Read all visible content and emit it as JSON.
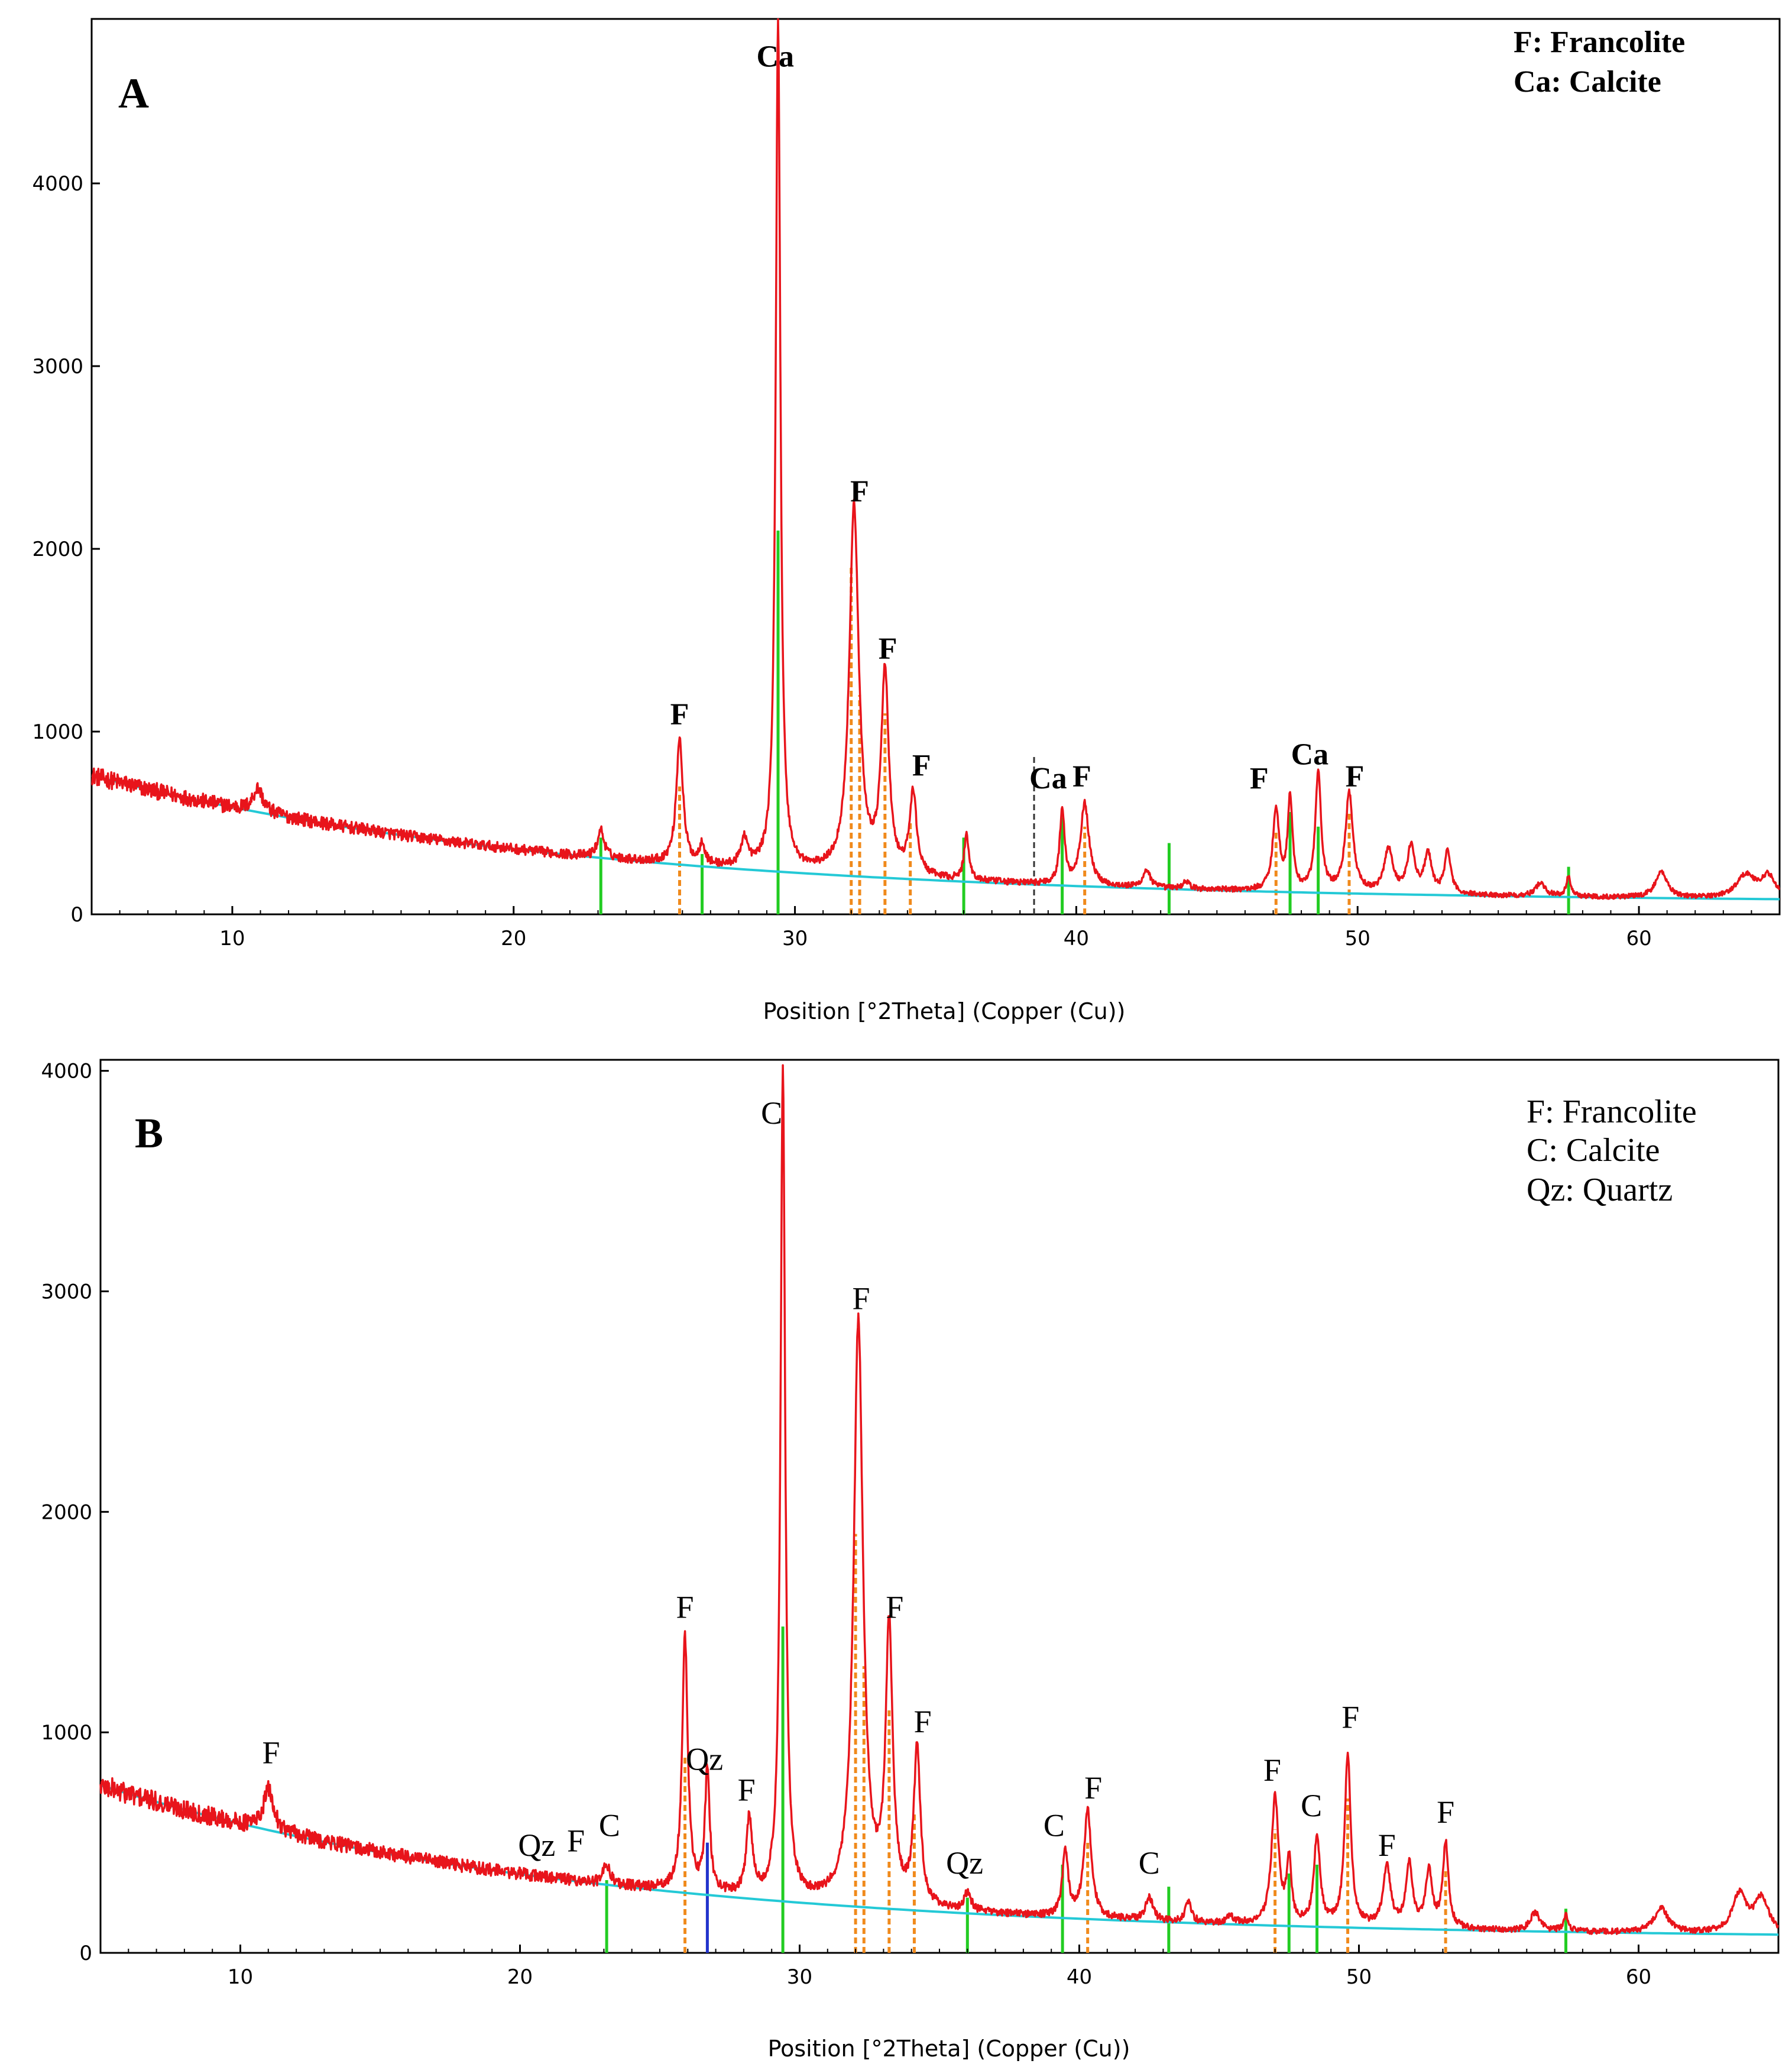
{
  "chart_data": [
    {
      "type": "line",
      "panel_label": "A",
      "xlabel": "Position [°2Theta] (Copper (Cu))",
      "ylabel": "",
      "xlim": [
        5,
        65
      ],
      "ylim": [
        0,
        4900
      ],
      "xticks": [
        10,
        20,
        30,
        40,
        50,
        60
      ],
      "yticks": [
        0,
        1000,
        2000,
        3000,
        4000
      ],
      "legend": [
        "F:  Francolite",
        "Ca: Calcite"
      ],
      "legend_position": "top-right",
      "colors": {
        "pattern": "#e8141b",
        "background": "#24c9d6",
        "reference_orange": "#f08a1c",
        "reference_green": "#22cc22"
      },
      "background_model": {
        "start": 760,
        "end": 60
      },
      "peaks": [
        {
          "x": 10.9,
          "y": 690,
          "w": 0.22
        },
        {
          "x": 22.0,
          "y": 310,
          "w": 0.18
        },
        {
          "x": 23.1,
          "y": 460,
          "w": 0.14
        },
        {
          "x": 25.9,
          "y": 960,
          "w": 0.14
        },
        {
          "x": 26.7,
          "y": 380,
          "w": 0.1
        },
        {
          "x": 28.2,
          "y": 400,
          "w": 0.14
        },
        {
          "x": 29.4,
          "y": 4880,
          "w": 0.1
        },
        {
          "x": 32.1,
          "y": 2220,
          "w": 0.2
        },
        {
          "x": 33.2,
          "y": 1290,
          "w": 0.16
        },
        {
          "x": 34.2,
          "y": 640,
          "w": 0.15
        },
        {
          "x": 36.1,
          "y": 430,
          "w": 0.1
        },
        {
          "x": 39.5,
          "y": 570,
          "w": 0.1
        },
        {
          "x": 40.3,
          "y": 600,
          "w": 0.18
        },
        {
          "x": 42.5,
          "y": 240,
          "w": 0.15
        },
        {
          "x": 43.9,
          "y": 180,
          "w": 0.12
        },
        {
          "x": 47.1,
          "y": 560,
          "w": 0.14
        },
        {
          "x": 47.6,
          "y": 630,
          "w": 0.1
        },
        {
          "x": 48.6,
          "y": 770,
          "w": 0.12
        },
        {
          "x": 49.7,
          "y": 660,
          "w": 0.16
        },
        {
          "x": 51.1,
          "y": 350,
          "w": 0.18
        },
        {
          "x": 51.9,
          "y": 360,
          "w": 0.16
        },
        {
          "x": 52.5,
          "y": 320,
          "w": 0.15
        },
        {
          "x": 53.2,
          "y": 340,
          "w": 0.13
        },
        {
          "x": 56.5,
          "y": 170,
          "w": 0.2
        },
        {
          "x": 57.5,
          "y": 200,
          "w": 0.1
        },
        {
          "x": 60.8,
          "y": 230,
          "w": 0.25
        },
        {
          "x": 63.8,
          "y": 210,
          "w": 0.4
        },
        {
          "x": 64.6,
          "y": 200,
          "w": 0.3
        }
      ],
      "reference_lines": [
        {
          "x": 23.1,
          "y": 420,
          "color": "green"
        },
        {
          "x": 26.7,
          "y": 330,
          "color": "green"
        },
        {
          "x": 29.4,
          "y": 2100,
          "color": "green"
        },
        {
          "x": 25.9,
          "y": 700,
          "color": "orange"
        },
        {
          "x": 32.0,
          "y": 1900,
          "color": "orange"
        },
        {
          "x": 32.3,
          "y": 1200,
          "color": "orange"
        },
        {
          "x": 33.2,
          "y": 1100,
          "color": "orange"
        },
        {
          "x": 34.1,
          "y": 500,
          "color": "orange"
        },
        {
          "x": 36.0,
          "y": 420,
          "color": "green"
        },
        {
          "x": 38.5,
          "y": 870,
          "color": "black"
        },
        {
          "x": 39.5,
          "y": 530,
          "color": "green"
        },
        {
          "x": 40.3,
          "y": 480,
          "color": "orange"
        },
        {
          "x": 43.3,
          "y": 390,
          "color": "green"
        },
        {
          "x": 47.1,
          "y": 450,
          "color": "orange"
        },
        {
          "x": 47.6,
          "y": 560,
          "color": "green"
        },
        {
          "x": 48.6,
          "y": 480,
          "color": "green"
        },
        {
          "x": 49.7,
          "y": 560,
          "color": "orange"
        },
        {
          "x": 57.5,
          "y": 260,
          "color": "green"
        }
      ],
      "annotations": [
        {
          "text": "Ca",
          "x": 29.3,
          "y": 4640
        },
        {
          "text": "F",
          "x": 32.3,
          "y": 2260
        },
        {
          "text": "F",
          "x": 33.3,
          "y": 1400
        },
        {
          "text": "F",
          "x": 25.9,
          "y": 1040
        },
        {
          "text": "F",
          "x": 34.5,
          "y": 760
        },
        {
          "text": "Ca",
          "x": 39.0,
          "y": 690
        },
        {
          "text": "F",
          "x": 40.2,
          "y": 700
        },
        {
          "text": "F",
          "x": 46.5,
          "y": 690
        },
        {
          "text": "Ca",
          "x": 48.3,
          "y": 820
        },
        {
          "text": "F",
          "x": 49.9,
          "y": 700
        }
      ]
    },
    {
      "type": "line",
      "panel_label": "B",
      "xlabel": "Position [°2Theta] (Copper (Cu))",
      "ylabel": "",
      "xlim": [
        5,
        65
      ],
      "ylim": [
        0,
        4050
      ],
      "xticks": [
        10,
        20,
        30,
        40,
        50,
        60
      ],
      "yticks": [
        0,
        1000,
        2000,
        3000,
        4000
      ],
      "legend": [
        "F:  Francolite",
        "C: Calcite",
        "Qz: Quartz"
      ],
      "legend_position": "top-right",
      "colors": {
        "pattern": "#e8141b",
        "background": "#24c9d6",
        "reference_orange": "#f08a1c",
        "reference_green": "#22cc22"
      },
      "background_model": {
        "start": 760,
        "end": 60
      },
      "peaks": [
        {
          "x": 11.0,
          "y": 740,
          "w": 0.22
        },
        {
          "x": 16.9,
          "y": 370,
          "w": 0.2
        },
        {
          "x": 20.9,
          "y": 290,
          "w": 0.12
        },
        {
          "x": 22.0,
          "y": 320,
          "w": 0.15
        },
        {
          "x": 23.1,
          "y": 400,
          "w": 0.14
        },
        {
          "x": 25.9,
          "y": 1420,
          "w": 0.12
        },
        {
          "x": 26.7,
          "y": 820,
          "w": 0.1
        },
        {
          "x": 28.2,
          "y": 590,
          "w": 0.13
        },
        {
          "x": 29.4,
          "y": 4000,
          "w": 0.1
        },
        {
          "x": 32.1,
          "y": 2850,
          "w": 0.2
        },
        {
          "x": 33.2,
          "y": 1440,
          "w": 0.15
        },
        {
          "x": 34.2,
          "y": 900,
          "w": 0.14
        },
        {
          "x": 36.0,
          "y": 260,
          "w": 0.15
        },
        {
          "x": 39.5,
          "y": 460,
          "w": 0.12
        },
        {
          "x": 40.3,
          "y": 640,
          "w": 0.16
        },
        {
          "x": 42.5,
          "y": 250,
          "w": 0.15
        },
        {
          "x": 43.9,
          "y": 230,
          "w": 0.12
        },
        {
          "x": 45.4,
          "y": 160,
          "w": 0.15
        },
        {
          "x": 47.0,
          "y": 700,
          "w": 0.15
        },
        {
          "x": 47.5,
          "y": 400,
          "w": 0.1
        },
        {
          "x": 48.5,
          "y": 520,
          "w": 0.13
        },
        {
          "x": 49.6,
          "y": 890,
          "w": 0.13
        },
        {
          "x": 51.0,
          "y": 380,
          "w": 0.16
        },
        {
          "x": 51.8,
          "y": 390,
          "w": 0.14
        },
        {
          "x": 52.5,
          "y": 360,
          "w": 0.14
        },
        {
          "x": 53.1,
          "y": 490,
          "w": 0.12
        },
        {
          "x": 56.3,
          "y": 180,
          "w": 0.2
        },
        {
          "x": 57.4,
          "y": 170,
          "w": 0.1
        },
        {
          "x": 60.8,
          "y": 200,
          "w": 0.3
        },
        {
          "x": 63.6,
          "y": 260,
          "w": 0.3
        },
        {
          "x": 64.4,
          "y": 240,
          "w": 0.3
        }
      ],
      "reference_lines": [
        {
          "x": 23.1,
          "y": 330,
          "color": "green"
        },
        {
          "x": 25.9,
          "y": 900,
          "color": "orange"
        },
        {
          "x": 26.7,
          "y": 500,
          "color": "blue"
        },
        {
          "x": 29.4,
          "y": 1480,
          "color": "green"
        },
        {
          "x": 32.0,
          "y": 1900,
          "color": "orange"
        },
        {
          "x": 32.3,
          "y": 1300,
          "color": "orange"
        },
        {
          "x": 33.2,
          "y": 1100,
          "color": "orange"
        },
        {
          "x": 34.1,
          "y": 640,
          "color": "orange"
        },
        {
          "x": 36.0,
          "y": 250,
          "color": "green"
        },
        {
          "x": 39.4,
          "y": 400,
          "color": "green"
        },
        {
          "x": 40.3,
          "y": 500,
          "color": "orange"
        },
        {
          "x": 43.2,
          "y": 300,
          "color": "green"
        },
        {
          "x": 47.0,
          "y": 560,
          "color": "orange"
        },
        {
          "x": 47.5,
          "y": 360,
          "color": "green"
        },
        {
          "x": 48.5,
          "y": 400,
          "color": "green"
        },
        {
          "x": 49.6,
          "y": 700,
          "color": "orange"
        },
        {
          "x": 53.1,
          "y": 380,
          "color": "orange"
        },
        {
          "x": 57.4,
          "y": 200,
          "color": "green"
        }
      ],
      "annotations": [
        {
          "text": "C",
          "x": 29.0,
          "y": 3760
        },
        {
          "text": "F",
          "x": 32.2,
          "y": 2920
        },
        {
          "text": "F",
          "x": 25.9,
          "y": 1520
        },
        {
          "text": "F",
          "x": 33.4,
          "y": 1520
        },
        {
          "text": "F",
          "x": 34.4,
          "y": 1000
        },
        {
          "text": "F",
          "x": 11.1,
          "y": 860
        },
        {
          "text": "Qz",
          "x": 26.6,
          "y": 830
        },
        {
          "text": "F",
          "x": 28.1,
          "y": 690
        },
        {
          "text": "Qz",
          "x": 20.6,
          "y": 440
        },
        {
          "text": "F",
          "x": 22.0,
          "y": 460
        },
        {
          "text": "C",
          "x": 23.2,
          "y": 530
        },
        {
          "text": "Qz",
          "x": 35.9,
          "y": 360
        },
        {
          "text": "C",
          "x": 39.1,
          "y": 530
        },
        {
          "text": "F",
          "x": 40.5,
          "y": 700
        },
        {
          "text": "C",
          "x": 42.5,
          "y": 360
        },
        {
          "text": "F",
          "x": 46.9,
          "y": 780
        },
        {
          "text": "C",
          "x": 48.3,
          "y": 620
        },
        {
          "text": "F",
          "x": 49.7,
          "y": 1020
        },
        {
          "text": "F",
          "x": 51.0,
          "y": 440
        },
        {
          "text": "F",
          "x": 53.1,
          "y": 590
        }
      ]
    }
  ]
}
